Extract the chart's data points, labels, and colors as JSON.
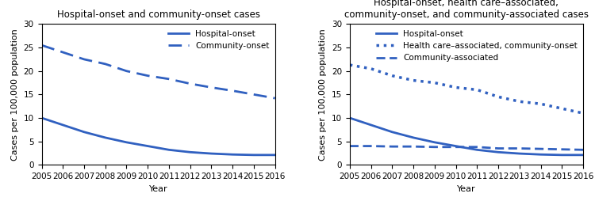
{
  "years": [
    2005,
    2006,
    2007,
    2008,
    2009,
    2010,
    2011,
    2012,
    2013,
    2014,
    2015,
    2016
  ],
  "left_hospital_onset": [
    10.0,
    8.5,
    7.0,
    5.8,
    4.8,
    4.0,
    3.2,
    2.7,
    2.4,
    2.2,
    2.1,
    2.1
  ],
  "left_community_onset": [
    25.5,
    24.0,
    22.5,
    21.5,
    20.0,
    19.0,
    18.3,
    17.3,
    16.5,
    15.8,
    15.0,
    14.2
  ],
  "right_hospital_onset": [
    10.0,
    8.5,
    7.0,
    5.8,
    4.8,
    4.0,
    3.2,
    2.7,
    2.4,
    2.2,
    2.1,
    2.1
  ],
  "right_hca_community_onset": [
    21.3,
    20.5,
    19.0,
    18.0,
    17.5,
    16.5,
    16.0,
    14.5,
    13.5,
    13.0,
    12.0,
    11.0
  ],
  "right_community_associated": [
    4.0,
    4.0,
    3.9,
    3.9,
    3.8,
    3.8,
    3.8,
    3.5,
    3.5,
    3.4,
    3.3,
    3.2
  ],
  "line_color": "#3060c0",
  "title_left": "Hospital-onset and community-onset cases",
  "title_right": "Hospital-onset, health care–associated,\ncommunity-onset, and community-associated cases",
  "ylabel": "Cases per 100,000 population",
  "xlabel": "Year",
  "ylim": [
    0,
    30
  ],
  "yticks": [
    0,
    5,
    10,
    15,
    20,
    25,
    30
  ],
  "xticks": [
    2005,
    2006,
    2007,
    2008,
    2009,
    2010,
    2011,
    2012,
    2013,
    2014,
    2015,
    2016
  ],
  "legend_left": [
    "Hospital-onset",
    "Community-onset"
  ],
  "legend_right": [
    "Hospital-onset",
    "Health care–associated, community-onset",
    "Community-associated"
  ],
  "title_fontsize": 8.5,
  "label_fontsize": 8,
  "tick_fontsize": 7.5,
  "legend_fontsize": 7.5
}
